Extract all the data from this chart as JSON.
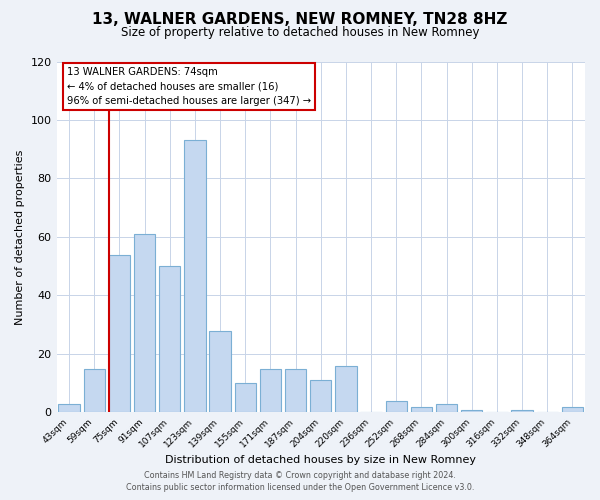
{
  "title": "13, WALNER GARDENS, NEW ROMNEY, TN28 8HZ",
  "subtitle": "Size of property relative to detached houses in New Romney",
  "xlabel": "Distribution of detached houses by size in New Romney",
  "ylabel": "Number of detached properties",
  "bin_labels": [
    "43sqm",
    "59sqm",
    "75sqm",
    "91sqm",
    "107sqm",
    "123sqm",
    "139sqm",
    "155sqm",
    "171sqm",
    "187sqm",
    "204sqm",
    "220sqm",
    "236sqm",
    "252sqm",
    "268sqm",
    "284sqm",
    "300sqm",
    "316sqm",
    "332sqm",
    "348sqm",
    "364sqm"
  ],
  "bar_values": [
    3,
    15,
    54,
    61,
    50,
    93,
    28,
    10,
    15,
    15,
    11,
    16,
    0,
    4,
    2,
    3,
    1,
    0,
    1,
    0,
    2
  ],
  "bar_color": "#c5d8f0",
  "bar_edge_color": "#7bafd4",
  "vline_index": 2,
  "vline_color": "#cc0000",
  "ylim": [
    0,
    120
  ],
  "yticks": [
    0,
    20,
    40,
    60,
    80,
    100,
    120
  ],
  "annotation_title": "13 WALNER GARDENS: 74sqm",
  "annotation_line1": "← 4% of detached houses are smaller (16)",
  "annotation_line2": "96% of semi-detached houses are larger (347) →",
  "annotation_box_color": "#cc0000",
  "footer_line1": "Contains HM Land Registry data © Crown copyright and database right 2024.",
  "footer_line2": "Contains public sector information licensed under the Open Government Licence v3.0.",
  "bg_color": "#eef2f8",
  "plot_bg_color": "#ffffff",
  "grid_color": "#c8d4e8"
}
